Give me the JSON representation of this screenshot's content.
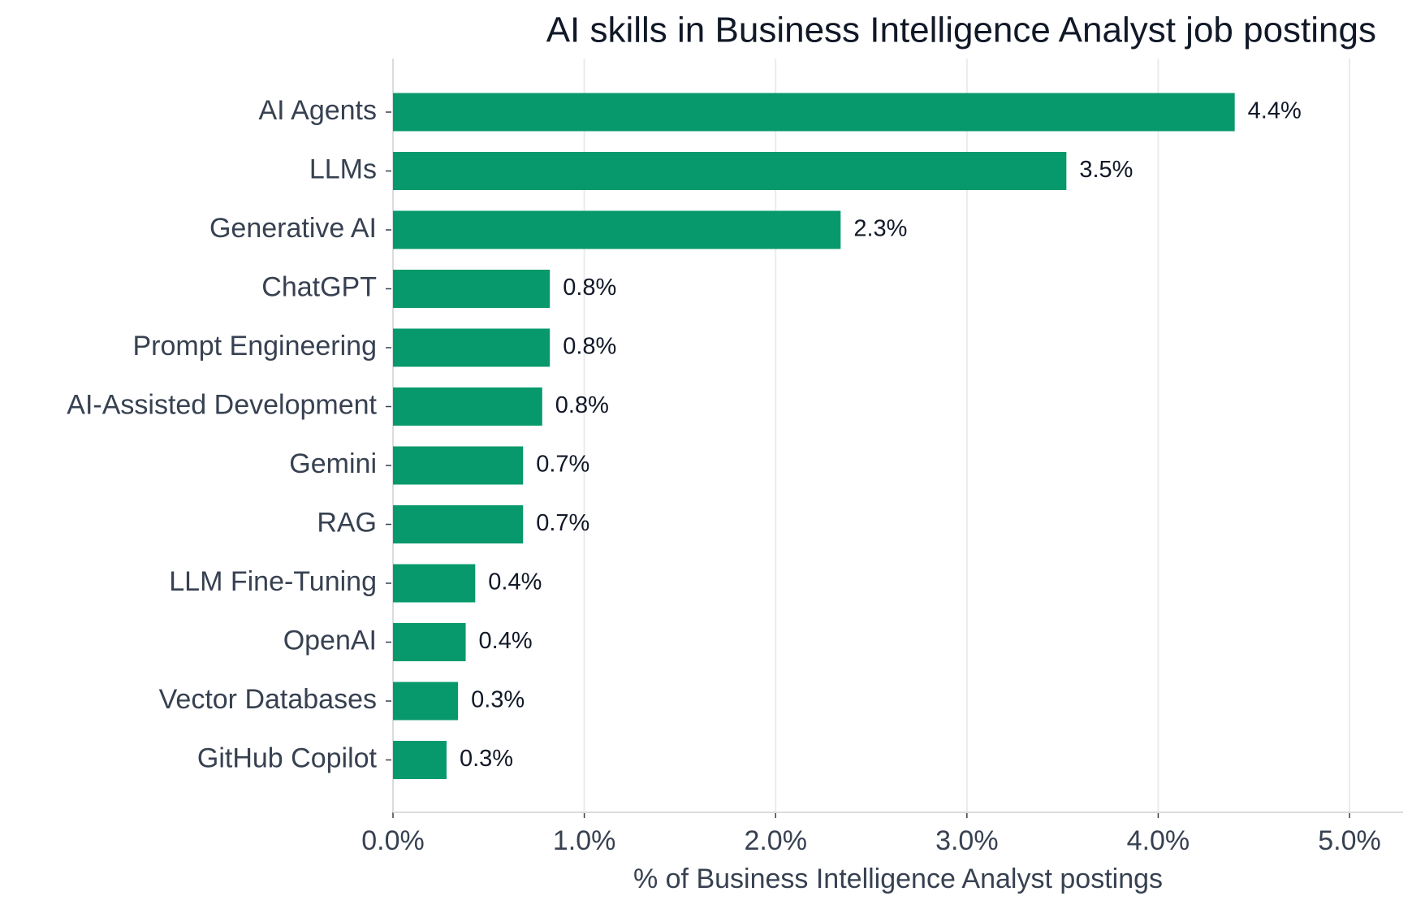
{
  "chart_data": {
    "type": "bar",
    "orientation": "horizontal",
    "title": "AI skills in Business Intelligence Analyst job postings",
    "x_label": "% of Business Intelligence Analyst postings",
    "categories": [
      "AI Agents",
      "LLMs",
      "Generative AI",
      "ChatGPT",
      "Prompt Engineering",
      "AI-Assisted Development",
      "Gemini",
      "RAG",
      "LLM Fine-Tuning",
      "OpenAI",
      "Vector Databases",
      "GitHub Copilot"
    ],
    "values": [
      4.4,
      3.52,
      2.34,
      0.82,
      0.82,
      0.78,
      0.68,
      0.68,
      0.43,
      0.38,
      0.34,
      0.28
    ],
    "value_labels": [
      "4.4%",
      "3.5%",
      "2.3%",
      "0.8%",
      "0.8%",
      "0.8%",
      "0.7%",
      "0.7%",
      "0.4%",
      "0.4%",
      "0.3%",
      "0.3%"
    ],
    "color": "#07996b",
    "xlim": [
      0,
      5.28
    ],
    "xticks": [
      {
        "value": 0,
        "label": "0.0%"
      },
      {
        "value": 1,
        "label": "1.0%"
      },
      {
        "value": 2,
        "label": "2.0%"
      },
      {
        "value": 3,
        "label": "3.0%"
      },
      {
        "value": 4,
        "label": "4.0%"
      },
      {
        "value": 5,
        "label": "5.0%"
      }
    ],
    "grid": true
  }
}
